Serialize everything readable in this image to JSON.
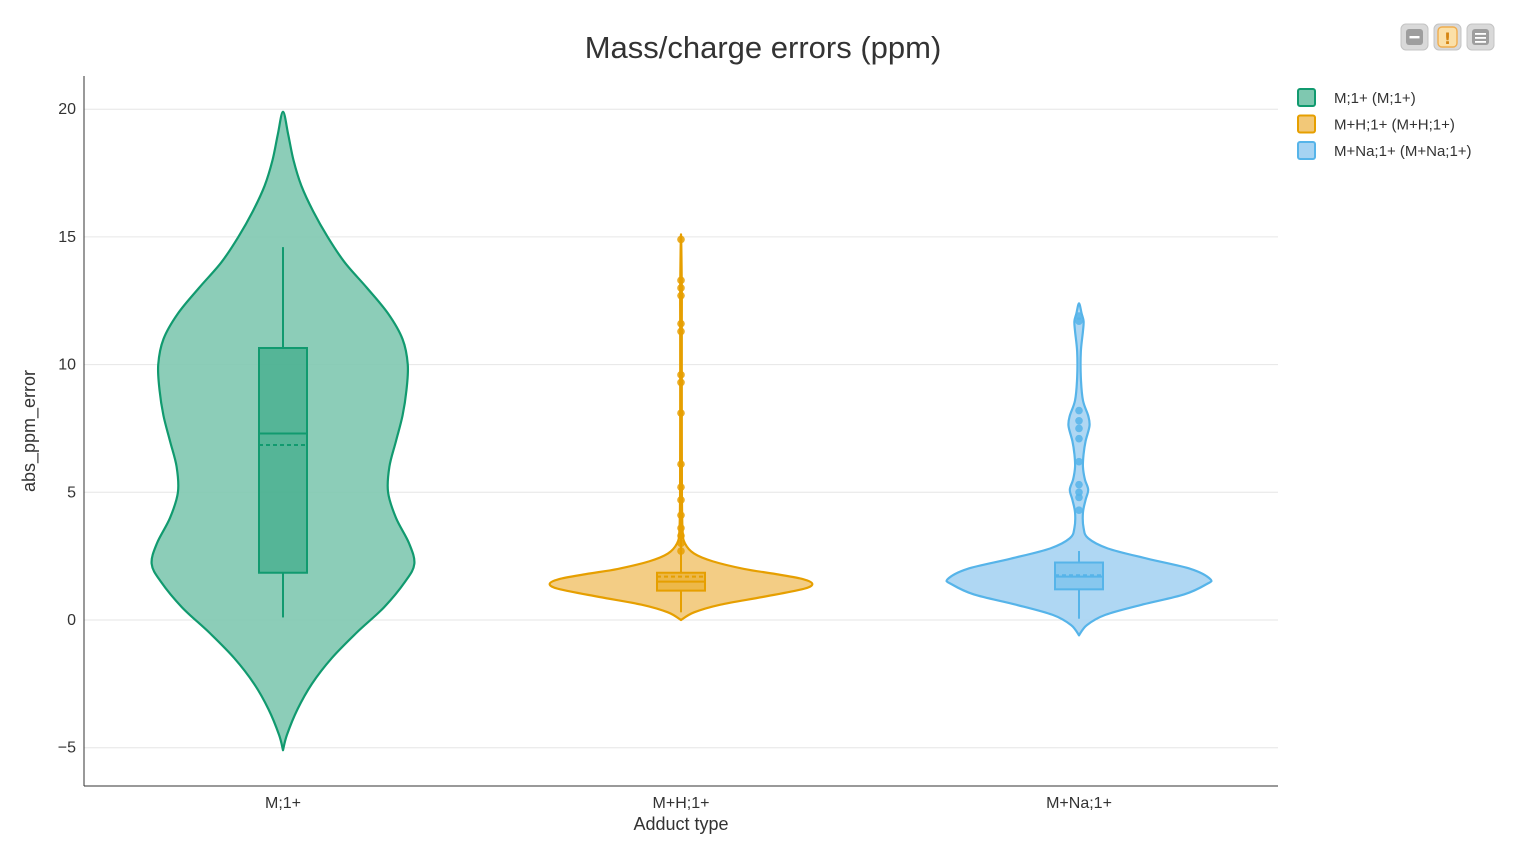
{
  "toolbar": {
    "buttons": [
      {
        "icon": "minus-icon",
        "color": "#9e9e9e"
      },
      {
        "icon": "exclamation-icon",
        "color": "#f0ad4e",
        "glyph": "!"
      },
      {
        "icon": "hamburger-menu-icon",
        "color": "#9e9e9e"
      }
    ]
  },
  "chart_data": {
    "type": "violin",
    "title": "Mass/charge errors (ppm)",
    "xlabel": "Adduct type",
    "ylabel": "abs_ppm_error",
    "ylim": [
      -6.5,
      21.3
    ],
    "yticks": [
      -5,
      0,
      5,
      10,
      15,
      20
    ],
    "ytick_labels": [
      "−5",
      "0",
      "5",
      "10",
      "15",
      "20"
    ],
    "grid": true,
    "legend_position": "top-right",
    "categories": [
      "M;1+",
      "M+H;1+",
      "M+Na;1+"
    ],
    "series": [
      {
        "name": "M;1+ (M;1+)",
        "category": "M;1+",
        "color": "#119a6f",
        "fill": "#7fc8b0",
        "violin_range": [
          -5.1,
          19.9
        ],
        "density_profile": [
          [
            -5.1,
            0.0
          ],
          [
            -4.5,
            0.03
          ],
          [
            -3.5,
            0.11
          ],
          [
            -2.5,
            0.22
          ],
          [
            -1.5,
            0.37
          ],
          [
            -0.5,
            0.56
          ],
          [
            0.5,
            0.77
          ],
          [
            1.5,
            0.93
          ],
          [
            2.2,
            1.0
          ],
          [
            3.0,
            0.96
          ],
          [
            4.0,
            0.86
          ],
          [
            5.0,
            0.8
          ],
          [
            6.0,
            0.81
          ],
          [
            7.0,
            0.86
          ],
          [
            8.0,
            0.91
          ],
          [
            9.0,
            0.94
          ],
          [
            10.0,
            0.95
          ],
          [
            11.0,
            0.91
          ],
          [
            12.0,
            0.8
          ],
          [
            13.0,
            0.64
          ],
          [
            14.0,
            0.47
          ],
          [
            15.0,
            0.34
          ],
          [
            16.0,
            0.23
          ],
          [
            17.0,
            0.14
          ],
          [
            18.0,
            0.08
          ],
          [
            19.0,
            0.04
          ],
          [
            19.9,
            0.0
          ]
        ],
        "max_half_width_ratio": 0.33,
        "box": {
          "q1": 1.85,
          "median": 7.3,
          "mean": 6.85,
          "q3": 10.65,
          "lower_whisker": 0.1,
          "upper_whisker": 14.6
        },
        "points": []
      },
      {
        "name": "M+H;1+ (M+H;1+)",
        "category": "M+H;1+",
        "color": "#e69f00",
        "fill": "#f2c878",
        "violin_range": [
          0.0,
          15.1
        ],
        "density_profile": [
          [
            0.0,
            0.0
          ],
          [
            0.3,
            0.1
          ],
          [
            0.6,
            0.3
          ],
          [
            0.9,
            0.62
          ],
          [
            1.2,
            0.92
          ],
          [
            1.4,
            1.0
          ],
          [
            1.6,
            0.93
          ],
          [
            1.8,
            0.72
          ],
          [
            2.0,
            0.48
          ],
          [
            2.3,
            0.24
          ],
          [
            2.6,
            0.1
          ],
          [
            3.0,
            0.03
          ],
          [
            3.5,
            0.012
          ],
          [
            5.0,
            0.007
          ],
          [
            8.0,
            0.006
          ],
          [
            11.5,
            0.006
          ],
          [
            13.0,
            0.006
          ],
          [
            15.1,
            0.0
          ]
        ],
        "max_half_width_ratio": 0.33,
        "box": {
          "q1": 1.15,
          "median": 1.5,
          "mean": 1.7,
          "q3": 1.85,
          "lower_whisker": 0.3,
          "upper_whisker": 15.1
        },
        "points": [
          2.7,
          3.0,
          3.3,
          3.6,
          4.1,
          4.7,
          5.2,
          6.1,
          8.1,
          9.3,
          9.6,
          11.3,
          11.6,
          12.7,
          13.0,
          13.3,
          14.9
        ]
      },
      {
        "name": "M+Na;1+ (M+Na;1+)",
        "category": "M+Na;1+",
        "color": "#56b4e9",
        "fill": "#a6d3f2",
        "violin_range": [
          -0.6,
          12.4
        ],
        "density_profile": [
          [
            -0.6,
            0.0
          ],
          [
            -0.2,
            0.06
          ],
          [
            0.2,
            0.2
          ],
          [
            0.6,
            0.48
          ],
          [
            1.0,
            0.8
          ],
          [
            1.4,
            0.97
          ],
          [
            1.6,
            1.0
          ],
          [
            2.0,
            0.85
          ],
          [
            2.4,
            0.52
          ],
          [
            2.8,
            0.22
          ],
          [
            3.2,
            0.07
          ],
          [
            3.6,
            0.035
          ],
          [
            4.2,
            0.03
          ],
          [
            4.7,
            0.05
          ],
          [
            5.1,
            0.07
          ],
          [
            5.5,
            0.045
          ],
          [
            6.0,
            0.03
          ],
          [
            6.5,
            0.035
          ],
          [
            7.0,
            0.05
          ],
          [
            7.6,
            0.08
          ],
          [
            8.0,
            0.07
          ],
          [
            8.6,
            0.03
          ],
          [
            9.5,
            0.014
          ],
          [
            10.5,
            0.014
          ],
          [
            11.3,
            0.03
          ],
          [
            11.7,
            0.035
          ],
          [
            12.0,
            0.02
          ],
          [
            12.4,
            0.0
          ]
        ],
        "max_half_width_ratio": 0.33,
        "box": {
          "q1": 1.2,
          "median": 1.7,
          "mean": 1.75,
          "q3": 2.25,
          "lower_whisker": 0.05,
          "upper_whisker": 2.7
        },
        "points": [
          4.3,
          4.8,
          5.0,
          5.3,
          6.2,
          7.1,
          7.5,
          7.8,
          8.2,
          11.7,
          11.9
        ]
      }
    ]
  }
}
